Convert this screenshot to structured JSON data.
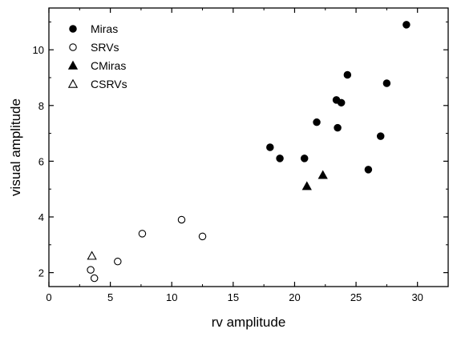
{
  "chart_data": {
    "type": "scatter",
    "xlabel": "rv amplitude",
    "ylabel": "visual amplitude",
    "xlim": [
      0,
      32.5
    ],
    "ylim": [
      1.5,
      11.5
    ],
    "xticks": [
      0,
      5,
      10,
      15,
      20,
      25,
      30
    ],
    "yticks": [
      2,
      4,
      6,
      8,
      10
    ],
    "grid": false,
    "legend_position": "top-left",
    "series": [
      {
        "name": "Miras",
        "marker": "filled-circle",
        "points": [
          {
            "x": 18.0,
            "y": 6.5
          },
          {
            "x": 18.8,
            "y": 6.1
          },
          {
            "x": 20.8,
            "y": 6.1
          },
          {
            "x": 21.8,
            "y": 7.4
          },
          {
            "x": 23.4,
            "y": 8.2
          },
          {
            "x": 23.5,
            "y": 7.2
          },
          {
            "x": 23.8,
            "y": 8.1
          },
          {
            "x": 24.3,
            "y": 9.1
          },
          {
            "x": 26.0,
            "y": 5.7
          },
          {
            "x": 27.0,
            "y": 6.9
          },
          {
            "x": 27.5,
            "y": 8.8
          },
          {
            "x": 29.1,
            "y": 10.9
          }
        ]
      },
      {
        "name": "SRVs",
        "marker": "open-circle",
        "points": [
          {
            "x": 3.4,
            "y": 2.1
          },
          {
            "x": 3.7,
            "y": 1.8
          },
          {
            "x": 5.6,
            "y": 2.4
          },
          {
            "x": 7.6,
            "y": 3.4
          },
          {
            "x": 10.8,
            "y": 3.9
          },
          {
            "x": 12.5,
            "y": 3.3
          }
        ]
      },
      {
        "name": "CMiras",
        "marker": "filled-triangle",
        "points": [
          {
            "x": 21.0,
            "y": 5.1
          },
          {
            "x": 22.3,
            "y": 5.5
          }
        ]
      },
      {
        "name": "CSRVs",
        "marker": "open-triangle",
        "points": [
          {
            "x": 3.5,
            "y": 2.6
          }
        ]
      }
    ]
  }
}
